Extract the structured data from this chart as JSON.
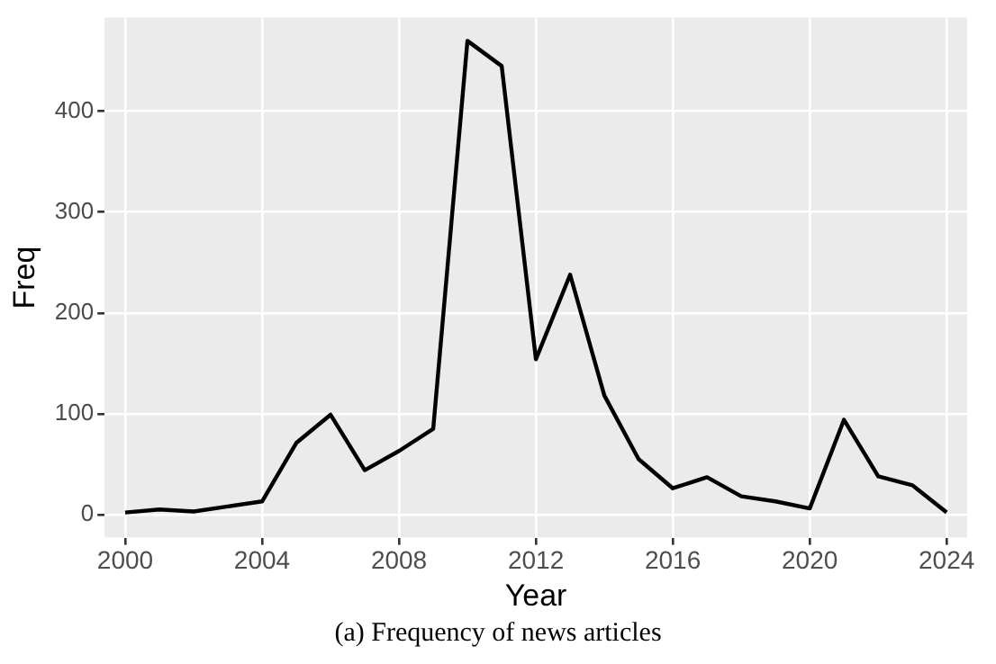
{
  "chart_data": {
    "type": "line",
    "xlabel": "Year",
    "ylabel": "Freq",
    "annotations": [
      "(a) Frequency of news articles"
    ],
    "x": [
      2000,
      2001,
      2002,
      2003,
      2004,
      2005,
      2006,
      2007,
      2008,
      2009,
      2010,
      2011,
      2012,
      2013,
      2014,
      2015,
      2016,
      2017,
      2018,
      2019,
      2020,
      2021,
      2022,
      2023,
      2024
    ],
    "series": [
      {
        "color": "#000000",
        "values": [
          2,
          5,
          3,
          8,
          13,
          71,
          99,
          44,
          63,
          85,
          470,
          445,
          154,
          238,
          118,
          55,
          26,
          37,
          18,
          13,
          6,
          94,
          38,
          29,
          2
        ]
      }
    ],
    "xlim": [
      1999.4,
      2024.6
    ],
    "xticks": [
      2000,
      2004,
      2008,
      2012,
      2016,
      2020,
      2024
    ],
    "ylim": [
      -23,
      493
    ],
    "yticks": [
      0,
      100,
      200,
      300,
      400
    ],
    "grid": true,
    "legend": false,
    "marker": "none",
    "line_style": "solid"
  }
}
